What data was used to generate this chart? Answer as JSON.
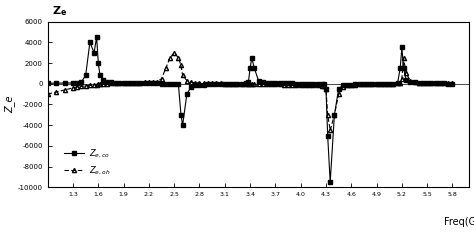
{
  "title": "Z_e",
  "xlabel": "Freq(GHZ)",
  "ylabel": "Z_e",
  "ylim": [
    -10000,
    6000
  ],
  "yticks": [
    -10000,
    -8000,
    -6000,
    -4000,
    -2000,
    0,
    2000,
    4000,
    6000
  ],
  "xlim": [
    1.0,
    6.0
  ],
  "xticks": [
    1.3,
    1.6,
    1.9,
    2.2,
    2.5,
    2.8,
    3.1,
    3.4,
    3.7,
    4.0,
    4.3,
    4.6,
    4.9,
    5.2,
    5.5,
    5.8
  ],
  "series1_label": "$Z_{e,co}$",
  "series2_label": "$Z_{e,oh}$",
  "legend_loc": "lower left",
  "background": "#ffffff",
  "freq": [
    1.0,
    1.1,
    1.2,
    1.3,
    1.35,
    1.4,
    1.45,
    1.5,
    1.55,
    1.58,
    1.6,
    1.62,
    1.65,
    1.7,
    1.75,
    1.8,
    1.85,
    1.9,
    1.95,
    2.0,
    2.05,
    2.1,
    2.15,
    2.2,
    2.25,
    2.3,
    2.35,
    2.4,
    2.45,
    2.5,
    2.55,
    2.58,
    2.6,
    2.65,
    2.7,
    2.75,
    2.8,
    2.85,
    2.9,
    2.95,
    3.0,
    3.05,
    3.1,
    3.15,
    3.2,
    3.25,
    3.3,
    3.35,
    3.38,
    3.4,
    3.42,
    3.45,
    3.5,
    3.55,
    3.6,
    3.65,
    3.7,
    3.75,
    3.8,
    3.85,
    3.9,
    3.95,
    4.0,
    4.05,
    4.1,
    4.15,
    4.2,
    4.25,
    4.28,
    4.3,
    4.32,
    4.35,
    4.4,
    4.45,
    4.5,
    4.55,
    4.6,
    4.65,
    4.7,
    4.75,
    4.8,
    4.85,
    4.9,
    4.95,
    5.0,
    5.05,
    5.1,
    5.15,
    5.18,
    5.2,
    5.22,
    5.25,
    5.3,
    5.35,
    5.4,
    5.45,
    5.5,
    5.55,
    5.6,
    5.65,
    5.7,
    5.75,
    5.8
  ],
  "z_co": [
    50,
    60,
    70,
    80,
    100,
    200,
    800,
    4000,
    3000,
    4500,
    2000,
    800,
    400,
    200,
    150,
    120,
    100,
    80,
    70,
    60,
    50,
    45,
    40,
    35,
    30,
    25,
    20,
    15,
    10,
    5,
    -50,
    -3000,
    -4000,
    -1000,
    -300,
    -150,
    -100,
    -80,
    -70,
    -60,
    -50,
    -40,
    -30,
    -20,
    -10,
    0,
    10,
    50,
    150,
    1500,
    2500,
    1500,
    300,
    150,
    100,
    80,
    60,
    50,
    40,
    30,
    25,
    20,
    15,
    10,
    5,
    0,
    -5,
    -10,
    -50,
    -500,
    -5000,
    -9500,
    -3000,
    -500,
    -150,
    -100,
    -80,
    -70,
    -60,
    -50,
    -40,
    -30,
    -20,
    -10,
    0,
    10,
    20,
    100,
    1500,
    3500,
    1500,
    400,
    200,
    150,
    120,
    100,
    80,
    60,
    50,
    40,
    30,
    20,
    10
  ],
  "z_oh": [
    -1000,
    -800,
    -600,
    -400,
    -300,
    -250,
    -200,
    -150,
    -100,
    -80,
    -60,
    -40,
    -20,
    10,
    30,
    50,
    70,
    80,
    90,
    100,
    110,
    120,
    130,
    140,
    150,
    200,
    500,
    1500,
    2500,
    3000,
    2500,
    1800,
    800,
    300,
    150,
    100,
    80,
    60,
    50,
    40,
    30,
    25,
    20,
    15,
    10,
    8,
    5,
    3,
    0,
    -2,
    -5,
    -10,
    -20,
    -30,
    -40,
    -50,
    -60,
    -70,
    -80,
    -90,
    -100,
    -110,
    -120,
    -130,
    -140,
    -150,
    -160,
    -170,
    -180,
    -500,
    -3000,
    -4500,
    -3000,
    -1000,
    -300,
    -150,
    -100,
    -80,
    -60,
    -50,
    -40,
    -30,
    -20,
    -10,
    0,
    10,
    20,
    30,
    100,
    500,
    2500,
    1000,
    300,
    150,
    120,
    100,
    90,
    80,
    70,
    60,
    50,
    40,
    30
  ]
}
